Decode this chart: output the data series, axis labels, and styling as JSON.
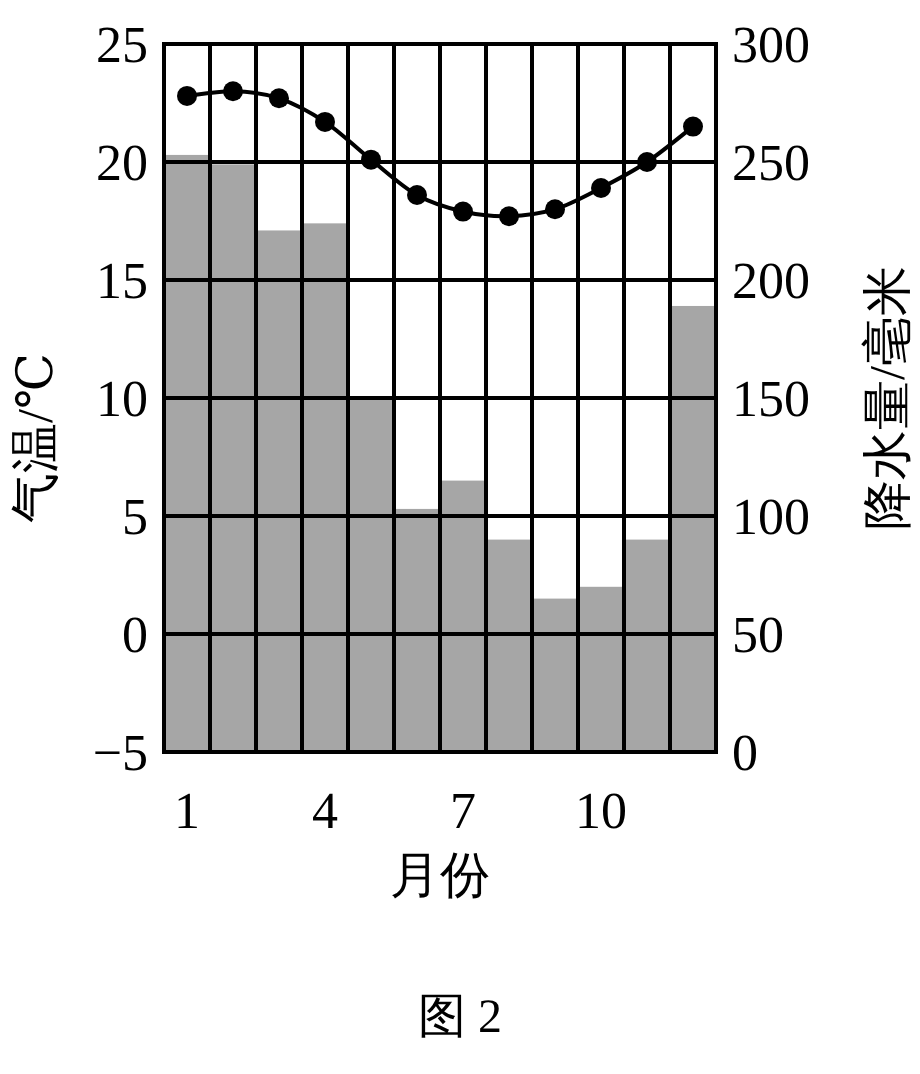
{
  "chart_data": {
    "type": "bar",
    "categories": [
      "1",
      null,
      null,
      "4",
      null,
      null,
      "7",
      null,
      null,
      "10",
      null,
      null
    ],
    "series": [
      {
        "axis": "y2",
        "color": "#a6a6a6",
        "values": [
          253,
          249,
          221,
          224,
          150,
          103,
          115,
          90,
          65,
          70,
          90,
          189
        ]
      },
      {
        "type": "line",
        "axis": "y",
        "color": "#000000",
        "marker": "circle",
        "line_style": "solid",
        "values": [
          22.8,
          23.0,
          22.7,
          21.7,
          20.1,
          18.6,
          17.9,
          17.7,
          18.0,
          18.9,
          20.0,
          21.5
        ]
      }
    ],
    "ylim": [
      -5,
      25
    ],
    "yticks": [
      -5,
      0,
      5,
      10,
      15,
      20,
      25
    ],
    "y2lim": [
      0,
      300
    ],
    "y2ticks": [
      0,
      50,
      100,
      150,
      200,
      250,
      300
    ],
    "xlabel": "月份",
    "ylabel": "气温/℃",
    "y2label": "降水量/毫米",
    "grid": true,
    "annotations": [
      "图 2"
    ]
  }
}
